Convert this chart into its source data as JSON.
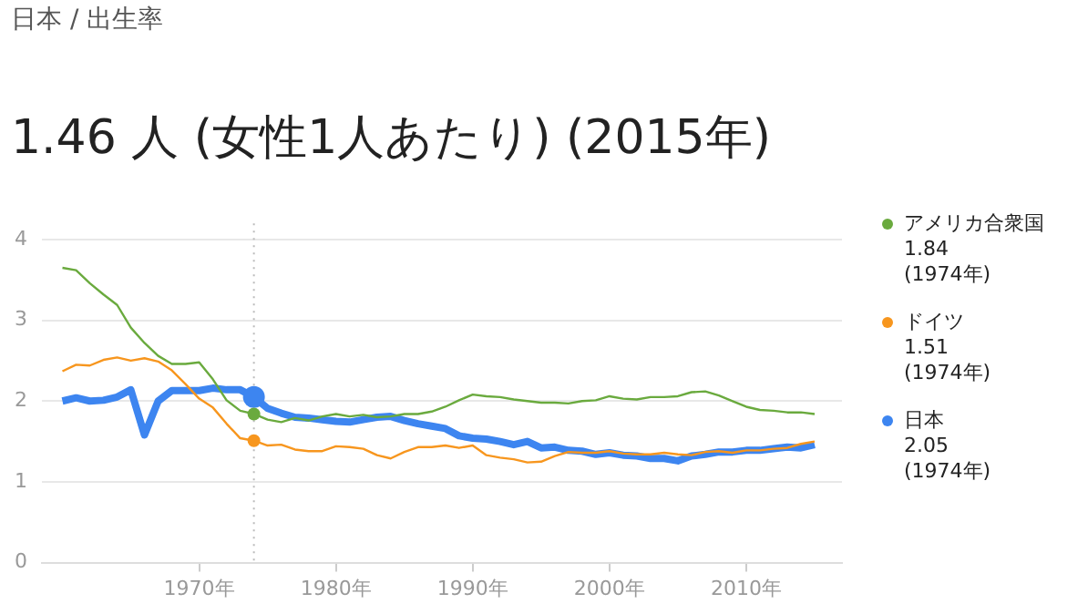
{
  "chart_data": {
    "type": "line",
    "subtitle": "日本 / 出生率",
    "title": "1.46 人 (女性1人あたり) (2015年)",
    "x": [
      1960,
      1961,
      1962,
      1963,
      1964,
      1965,
      1966,
      1967,
      1968,
      1969,
      1970,
      1971,
      1972,
      1973,
      1974,
      1975,
      1976,
      1977,
      1978,
      1979,
      1980,
      1981,
      1982,
      1983,
      1984,
      1985,
      1986,
      1987,
      1988,
      1989,
      1990,
      1991,
      1992,
      1993,
      1994,
      1995,
      1996,
      1997,
      1998,
      1999,
      2000,
      2001,
      2002,
      2003,
      2004,
      2005,
      2006,
      2007,
      2008,
      2009,
      2010,
      2011,
      2012,
      2013,
      2014,
      2015
    ],
    "series": [
      {
        "name": "アメリカ合衆国",
        "color": "#6aaa3e",
        "values": [
          3.65,
          3.62,
          3.46,
          3.32,
          3.19,
          2.91,
          2.72,
          2.56,
          2.46,
          2.46,
          2.48,
          2.27,
          2.01,
          1.88,
          1.84,
          1.77,
          1.74,
          1.79,
          1.76,
          1.81,
          1.84,
          1.81,
          1.83,
          1.8,
          1.81,
          1.84,
          1.84,
          1.87,
          1.93,
          2.01,
          2.08,
          2.06,
          2.05,
          2.02,
          2.0,
          1.98,
          1.98,
          1.97,
          2.0,
          2.01,
          2.06,
          2.03,
          2.02,
          2.05,
          2.05,
          2.06,
          2.11,
          2.12,
          2.07,
          2.0,
          1.93,
          1.89,
          1.88,
          1.86,
          1.86,
          1.84
        ]
      },
      {
        "name": "ドイツ",
        "color": "#f7961e",
        "values": [
          2.37,
          2.45,
          2.44,
          2.51,
          2.54,
          2.5,
          2.53,
          2.49,
          2.38,
          2.21,
          2.03,
          1.92,
          1.72,
          1.54,
          1.51,
          1.45,
          1.46,
          1.4,
          1.38,
          1.38,
          1.44,
          1.43,
          1.41,
          1.33,
          1.29,
          1.37,
          1.43,
          1.43,
          1.45,
          1.42,
          1.45,
          1.33,
          1.3,
          1.28,
          1.24,
          1.25,
          1.32,
          1.37,
          1.36,
          1.36,
          1.38,
          1.35,
          1.34,
          1.34,
          1.36,
          1.34,
          1.33,
          1.37,
          1.38,
          1.36,
          1.39,
          1.39,
          1.41,
          1.42,
          1.47,
          1.5
        ]
      },
      {
        "name": "日本",
        "color": "#3d85f0",
        "values": [
          2.0,
          2.04,
          2.0,
          2.01,
          2.05,
          2.14,
          1.58,
          2.0,
          2.13,
          2.13,
          2.13,
          2.16,
          2.14,
          2.14,
          2.05,
          1.91,
          1.85,
          1.8,
          1.79,
          1.77,
          1.75,
          1.74,
          1.77,
          1.8,
          1.81,
          1.76,
          1.72,
          1.69,
          1.66,
          1.57,
          1.54,
          1.53,
          1.5,
          1.46,
          1.5,
          1.42,
          1.43,
          1.39,
          1.38,
          1.34,
          1.36,
          1.33,
          1.32,
          1.29,
          1.29,
          1.26,
          1.32,
          1.34,
          1.37,
          1.37,
          1.39,
          1.39,
          1.41,
          1.43,
          1.42,
          1.46
        ]
      }
    ],
    "annotations": [
      "1.84\n(1974年)",
      "1.51\n(1974年)",
      "2.05\n(1974年)"
    ],
    "ref_lines": [
      {
        "axis": "x",
        "value": 1974,
        "color": "#bbbbbb",
        "line_style": "dotted"
      }
    ],
    "xlim": [
      1958.5,
      2017
    ],
    "xticks": [
      {
        "value": 1970,
        "label": "1970年"
      },
      {
        "value": 1980,
        "label": "1980年"
      },
      {
        "value": 1990,
        "label": "1990年"
      },
      {
        "value": 2000,
        "label": "2000年"
      },
      {
        "value": 2010,
        "label": "2010年"
      }
    ],
    "ylim": [
      0,
      4.2
    ],
    "yticks": [
      0,
      1,
      2,
      3,
      4
    ],
    "grid": "y",
    "legend": "right",
    "marker": "none",
    "line_style": "solid"
  }
}
